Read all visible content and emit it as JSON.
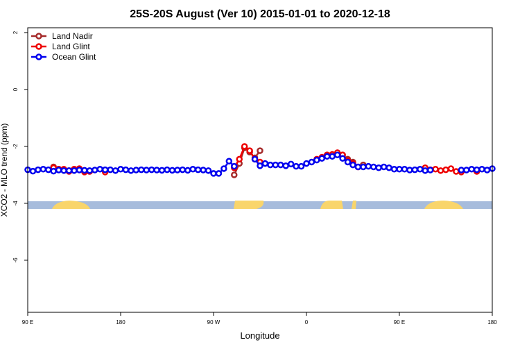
{
  "chart_data": {
    "type": "line",
    "title": "25S-20S August (Ver 10)   2015-01-01 to 2020-12-18",
    "x_label": "Longitude",
    "y_label": "XCO2 - MLO trend (ppm)",
    "x": [
      90,
      95,
      100,
      105,
      110,
      115,
      120,
      125,
      130,
      135,
      140,
      145,
      150,
      155,
      160,
      165,
      170,
      175,
      180,
      185,
      190,
      195,
      200,
      205,
      210,
      215,
      220,
      225,
      230,
      235,
      240,
      245,
      250,
      255,
      260,
      265,
      270,
      275,
      280,
      285,
      290,
      295,
      300,
      305,
      310,
      315,
      320,
      325,
      330,
      335,
      340,
      345,
      350,
      355,
      360,
      365,
      370,
      375,
      380,
      385,
      390,
      395,
      400,
      405,
      410,
      415,
      420,
      425,
      430,
      435,
      440,
      445,
      450,
      455,
      460,
      465,
      470,
      475,
      480,
      485,
      490,
      495,
      500,
      505,
      510,
      515,
      520,
      525,
      530,
      535,
      540
    ],
    "xlim": [
      90,
      540
    ],
    "xticks": [
      {
        "value": 90,
        "label": "90 E"
      },
      180,
      {
        "value": 270,
        "label": "90 W"
      },
      {
        "value": 360,
        "label": "0"
      },
      {
        "value": 450,
        "label": "90 E"
      },
      {
        "value": 540,
        "label": "180"
      }
    ],
    "ylim": [
      -7.83,
      2.17
    ],
    "yticks": [
      -6,
      -4,
      -2,
      0,
      2
    ],
    "legend": "top-left",
    "series": [
      {
        "name": "Land Nadir",
        "color": "#a52a2a",
        "values": [
          null,
          null,
          null,
          null,
          null,
          -2.72,
          -2.8,
          -2.82,
          -2.85,
          -2.8,
          -2.82,
          null,
          null,
          null,
          null,
          null,
          null,
          null,
          null,
          null,
          null,
          null,
          null,
          null,
          null,
          null,
          null,
          null,
          null,
          null,
          null,
          null,
          null,
          null,
          null,
          null,
          null,
          null,
          null,
          null,
          -3.0,
          -2.6,
          -2.05,
          -2.2,
          -2.4,
          -2.15,
          null,
          null,
          null,
          null,
          null,
          null,
          null,
          null,
          null,
          null,
          null,
          null,
          -2.3,
          -2.3,
          -2.25,
          -2.3,
          -2.45,
          -2.55,
          null,
          -2.65,
          null,
          null,
          null,
          null,
          null,
          null,
          null,
          null,
          null,
          null,
          null,
          null,
          null,
          null,
          null,
          null,
          null,
          null,
          null,
          null,
          null,
          null,
          null,
          null,
          null
        ]
      },
      {
        "name": "Land Glint",
        "color": "#ee0000",
        "values": [
          null,
          null,
          null,
          null,
          null,
          -2.75,
          -2.8,
          -2.8,
          -2.88,
          -2.8,
          -2.78,
          -2.9,
          -2.88,
          null,
          null,
          -2.9,
          null,
          null,
          null,
          null,
          null,
          null,
          null,
          null,
          null,
          null,
          null,
          null,
          null,
          null,
          null,
          null,
          null,
          null,
          null,
          null,
          null,
          null,
          null,
          null,
          -2.75,
          -2.45,
          -2.0,
          -2.15,
          -2.45,
          -2.55,
          null,
          null,
          null,
          null,
          null,
          null,
          null,
          null,
          null,
          null,
          -2.45,
          -2.38,
          -2.3,
          -2.28,
          -2.22,
          -2.3,
          -2.5,
          -2.6,
          -2.72,
          null,
          null,
          null,
          null,
          null,
          null,
          null,
          null,
          null,
          null,
          null,
          null,
          -2.75,
          -2.82,
          -2.8,
          -2.85,
          -2.82,
          -2.78,
          -2.88,
          -2.9,
          null,
          null,
          -2.88,
          null,
          null,
          null
        ]
      },
      {
        "name": "Ocean Glint",
        "color": "#0000ee",
        "values": [
          -2.82,
          -2.87,
          -2.82,
          -2.8,
          -2.82,
          -2.87,
          -2.83,
          -2.85,
          -2.85,
          -2.85,
          -2.83,
          -2.84,
          -2.85,
          -2.83,
          -2.8,
          -2.82,
          -2.82,
          -2.85,
          -2.8,
          -2.82,
          -2.85,
          -2.83,
          -2.82,
          -2.83,
          -2.82,
          -2.83,
          -2.84,
          -2.82,
          -2.84,
          -2.83,
          -2.82,
          -2.84,
          -2.8,
          -2.82,
          -2.83,
          -2.85,
          -2.95,
          -2.95,
          -2.78,
          -2.52,
          -2.7,
          null,
          null,
          null,
          -2.45,
          -2.68,
          -2.6,
          -2.65,
          -2.65,
          -2.65,
          -2.68,
          -2.62,
          -2.7,
          -2.7,
          -2.6,
          -2.55,
          -2.48,
          -2.42,
          -2.35,
          -2.35,
          -2.3,
          -2.42,
          -2.55,
          -2.65,
          -2.72,
          -2.72,
          -2.7,
          -2.72,
          -2.75,
          -2.72,
          -2.75,
          -2.8,
          -2.8,
          -2.8,
          -2.83,
          -2.82,
          -2.8,
          -2.85,
          -2.83,
          null,
          null,
          null,
          null,
          null,
          -2.83,
          -2.83,
          -2.8,
          -2.82,
          -2.8,
          -2.83,
          -2.78
        ]
      }
    ]
  }
}
